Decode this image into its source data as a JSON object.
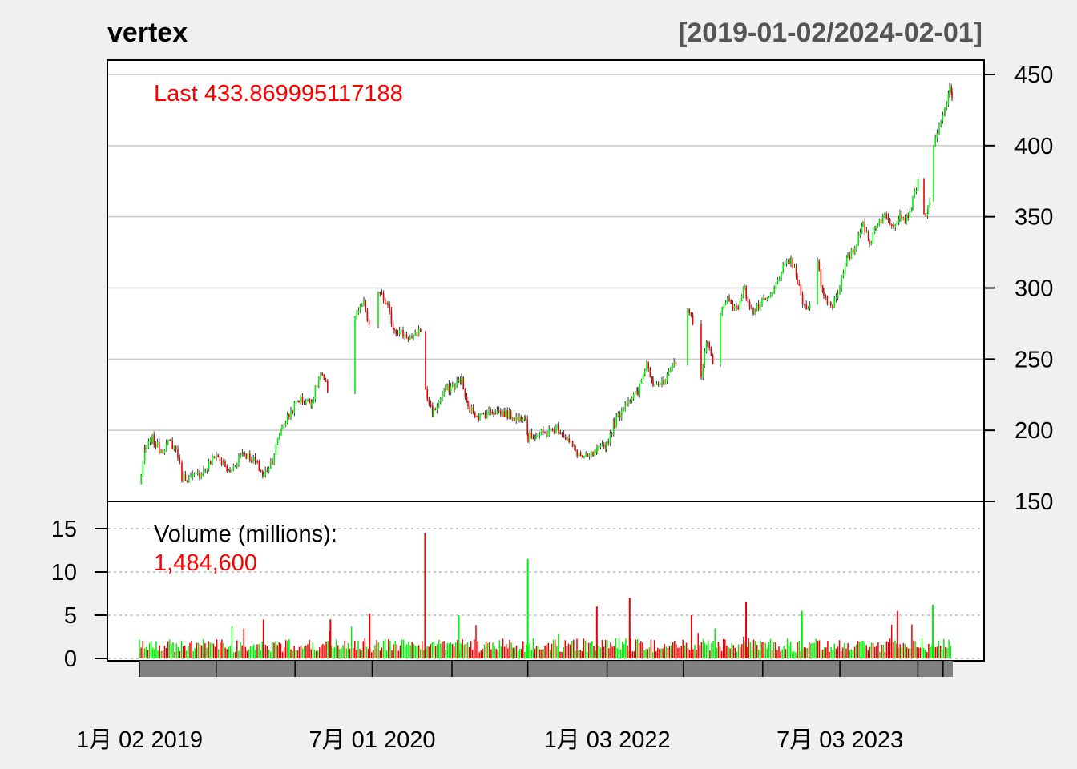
{
  "chart": {
    "title": "vertex",
    "date_range": "[2019-01-02/2024-02-01]",
    "last_label": "Last 433.869995117188",
    "volume_label": "Volume (millions):",
    "volume_value": "1,484,600",
    "colors": {
      "up": "#00ee00",
      "down": "#ee0000",
      "background": "#f0f0f0",
      "panel": "#ffffff",
      "grid": "#c8c8c8",
      "accent_text": "#ff0000",
      "range_text": "#555555",
      "date_band": "#808080"
    }
  },
  "chart_data": {
    "type": "line",
    "subtype": "candlestick-with-volume",
    "title": "vertex",
    "subtitle": "[2019-01-02/2024-02-01]",
    "x_tick_labels": [
      "1月 02 2019",
      "7月 01 2020",
      "1月 03 2022",
      "7月 03 2023"
    ],
    "price_axis": {
      "side": "right",
      "ticks": [
        150,
        200,
        250,
        300,
        350,
        400,
        450
      ],
      "ylim": [
        150,
        450
      ],
      "grid": true
    },
    "volume_axis": {
      "side": "left",
      "unit": "millions",
      "ticks": [
        0,
        5,
        10,
        15
      ],
      "ylim": [
        0,
        18
      ],
      "grid": "dotted"
    },
    "series": [
      {
        "kind": "price_close",
        "points": [
          [
            "2019-01-02",
            162
          ],
          [
            "2019-01-15",
            186
          ],
          [
            "2019-02-01",
            194
          ],
          [
            "2019-02-20",
            186
          ],
          [
            "2019-03-15",
            192
          ],
          [
            "2019-04-01",
            185
          ],
          [
            "2019-04-10",
            168
          ],
          [
            "2019-05-01",
            166
          ],
          [
            "2019-06-01",
            171
          ],
          [
            "2019-07-01",
            183
          ],
          [
            "2019-08-01",
            170
          ],
          [
            "2019-09-01",
            185
          ],
          [
            "2019-10-01",
            178
          ],
          [
            "2019-10-20",
            168
          ],
          [
            "2019-11-10",
            180
          ],
          [
            "2019-12-01",
            202
          ],
          [
            "2020-01-10",
            222
          ],
          [
            "2020-02-10",
            220
          ],
          [
            "2020-03-01",
            240
          ],
          [
            "2020-03-20",
            228
          ],
          [
            "2020-04-05",
            200
          ],
          [
            "2020-04-25",
            238
          ],
          [
            "2020-05-20",
            280
          ],
          [
            "2020-06-10",
            290
          ],
          [
            "2020-06-25",
            270
          ],
          [
            "2020-07-15",
            298
          ],
          [
            "2020-08-05",
            288
          ],
          [
            "2020-08-20",
            272
          ],
          [
            "2020-09-10",
            268
          ],
          [
            "2020-10-05",
            264
          ],
          [
            "2020-10-23",
            272
          ],
          [
            "2020-11-02",
            228
          ],
          [
            "2020-11-20",
            212
          ],
          [
            "2020-12-20",
            229
          ],
          [
            "2021-01-10",
            231
          ],
          [
            "2021-01-25",
            237
          ],
          [
            "2021-02-10",
            216
          ],
          [
            "2021-03-10",
            210
          ],
          [
            "2021-04-10",
            214
          ],
          [
            "2021-05-10",
            212
          ],
          [
            "2021-06-10",
            208
          ],
          [
            "2021-06-25",
            213
          ],
          [
            "2021-07-01",
            195
          ],
          [
            "2021-07-20",
            197
          ],
          [
            "2021-08-15",
            198
          ],
          [
            "2021-09-10",
            202
          ],
          [
            "2021-10-01",
            194
          ],
          [
            "2021-10-20",
            186
          ],
          [
            "2021-11-10",
            180
          ],
          [
            "2021-12-10",
            185
          ],
          [
            "2022-01-01",
            190
          ],
          [
            "2022-01-20",
            205
          ],
          [
            "2022-02-20",
            222
          ],
          [
            "2022-03-15",
            225
          ],
          [
            "2022-04-05",
            248
          ],
          [
            "2022-04-20",
            235
          ],
          [
            "2022-05-15",
            232
          ],
          [
            "2022-06-15",
            250
          ],
          [
            "2022-07-10",
            288
          ],
          [
            "2022-07-25",
            272
          ],
          [
            "2022-08-10",
            238
          ],
          [
            "2022-08-25",
            262
          ],
          [
            "2022-09-10",
            248
          ],
          [
            "2022-09-25",
            282
          ],
          [
            "2022-10-15",
            294
          ],
          [
            "2022-11-01",
            283
          ],
          [
            "2022-11-20",
            300
          ],
          [
            "2022-12-10",
            283
          ],
          [
            "2023-01-05",
            290
          ],
          [
            "2023-01-25",
            295
          ],
          [
            "2023-02-15",
            312
          ],
          [
            "2023-03-10",
            320
          ],
          [
            "2023-03-25",
            305
          ],
          [
            "2023-04-10",
            287
          ],
          [
            "2023-04-25",
            290
          ],
          [
            "2023-05-10",
            320
          ],
          [
            "2023-05-25",
            295
          ],
          [
            "2023-06-15",
            288
          ],
          [
            "2023-07-01",
            300
          ],
          [
            "2023-07-20",
            320
          ],
          [
            "2023-08-10",
            330
          ],
          [
            "2023-08-25",
            348
          ],
          [
            "2023-09-10",
            330
          ],
          [
            "2023-09-25",
            345
          ],
          [
            "2023-10-15",
            350
          ],
          [
            "2023-11-05",
            345
          ],
          [
            "2023-11-20",
            352
          ],
          [
            "2023-12-05",
            348
          ],
          [
            "2023-12-20",
            360
          ],
          [
            "2024-01-05",
            380
          ],
          [
            "2024-01-15",
            350
          ],
          [
            "2024-01-25",
            355
          ],
          [
            "2024-01-31",
            360
          ],
          [
            "2024-02-06",
            398
          ],
          [
            "2024-02-20",
            412
          ],
          [
            "2024-03-05",
            425
          ],
          [
            "2024-03-15",
            440
          ],
          [
            "2024-03-22",
            434
          ]
        ]
      },
      {
        "kind": "volume_millions",
        "spikes": [
          [
            "2020-11-02",
            14.5
          ],
          [
            "2021-07-01",
            11.5
          ],
          [
            "2021-12-10",
            6.0
          ],
          [
            "2022-02-25",
            7.0
          ],
          [
            "2022-11-25",
            6.5
          ],
          [
            "2023-04-05",
            5.5
          ],
          [
            "2023-11-15",
            5.5
          ],
          [
            "2024-02-06",
            6.2
          ],
          [
            "2020-06-25",
            5.2
          ],
          [
            "2020-03-25",
            4.5
          ],
          [
            "2019-10-20",
            4.5
          ],
          [
            "2021-01-20",
            5.0
          ],
          [
            "2022-07-20",
            5.0
          ]
        ],
        "baseline": 1.5
      }
    ],
    "last_close": 433.869995117188,
    "last_volume": 1484600
  }
}
